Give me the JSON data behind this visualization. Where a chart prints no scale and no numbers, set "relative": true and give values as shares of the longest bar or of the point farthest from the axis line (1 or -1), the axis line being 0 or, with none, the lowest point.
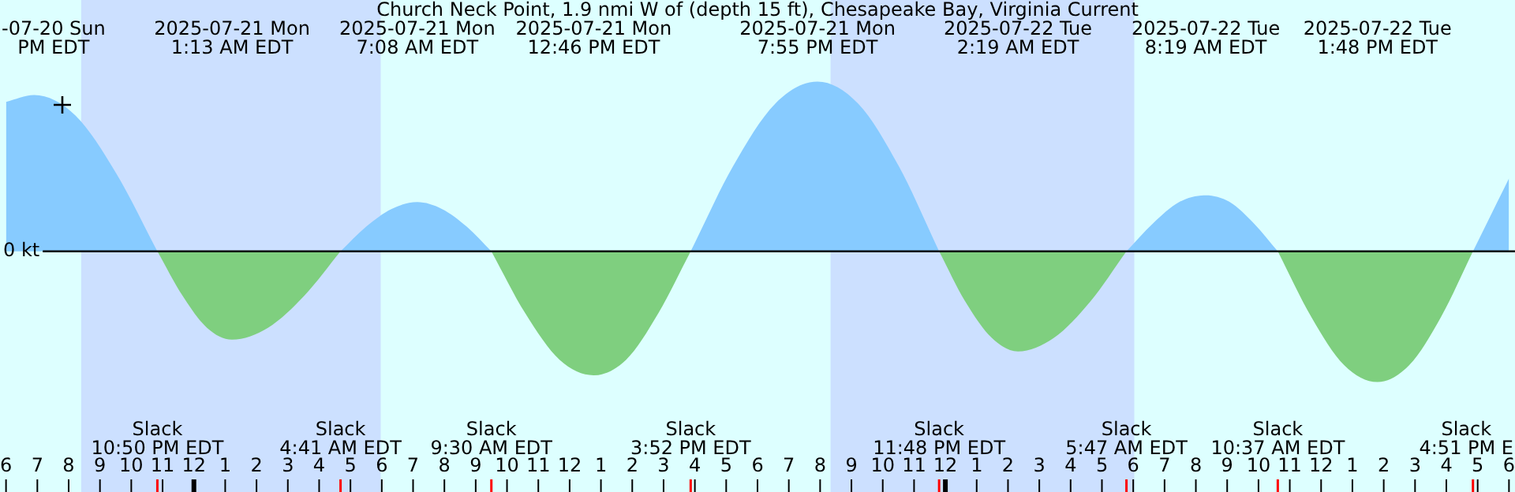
{
  "chart_data": {
    "type": "area",
    "title": "Church Neck Point, 1.9 nmi W of (depth 15 ft), Chesapeake Bay, Virginia Current",
    "relative": true,
    "marker": "none",
    "x": [
      "2025-07-20T18:00",
      "2025-07-20T18:54",
      "2025-07-20T20:13",
      "2025-07-20T21:31",
      "2025-07-20T22:50",
      "2025-07-20T23:38",
      "2025-07-21T00:25",
      "2025-07-21T01:13",
      "2025-07-21T02:22",
      "2025-07-21T03:32",
      "2025-07-21T04:41",
      "2025-07-21T05:30",
      "2025-07-21T06:19",
      "2025-07-21T07:08",
      "2025-07-21T07:55",
      "2025-07-21T08:43",
      "2025-07-21T09:30",
      "2025-07-21T10:35",
      "2025-07-21T11:41",
      "2025-07-21T12:46",
      "2025-07-21T13:48",
      "2025-07-21T14:50",
      "2025-07-21T15:52",
      "2025-07-21T17:13",
      "2025-07-21T18:34",
      "2025-07-21T19:55",
      "2025-07-21T21:13",
      "2025-07-21T22:31",
      "2025-07-21T23:48",
      "2025-07-22T00:38",
      "2025-07-22T01:29",
      "2025-07-22T02:19",
      "2025-07-22T03:28",
      "2025-07-22T04:38",
      "2025-07-22T05:47",
      "2025-07-22T06:38",
      "2025-07-22T07:28",
      "2025-07-22T08:19",
      "2025-07-22T09:05",
      "2025-07-22T09:51",
      "2025-07-22T10:37",
      "2025-07-22T11:41",
      "2025-07-22T12:44",
      "2025-07-22T13:48",
      "2025-07-22T14:49",
      "2025-07-22T15:50",
      "2025-07-22T16:51",
      "2025-07-22T18:00"
    ],
    "series": [
      {
        "color": "#87cbff",
        "values": [
          0.88,
          0.92,
          0.8,
          0.46,
          0,
          null,
          null,
          null,
          null,
          null,
          0,
          0.145,
          0.25,
          0.29,
          0.25,
          0.145,
          0,
          null,
          null,
          null,
          null,
          null,
          0,
          0.5,
          0.87,
          1,
          0.87,
          0.5,
          0,
          null,
          null,
          null,
          null,
          null,
          0,
          0.165,
          0.29,
          0.33,
          0.29,
          0.165,
          0,
          null,
          null,
          null,
          null,
          null,
          0,
          0.43
        ]
      },
      {
        "color": "#7fcf7f",
        "values": [
          null,
          null,
          null,
          null,
          0,
          -0.26,
          -0.45,
          -0.52,
          -0.45,
          -0.26,
          0,
          null,
          null,
          null,
          null,
          null,
          0,
          -0.365,
          -0.64,
          -0.73,
          -0.64,
          -0.365,
          0,
          null,
          null,
          null,
          null,
          null,
          0,
          -0.295,
          -0.51,
          -0.59,
          -0.51,
          -0.295,
          0,
          null,
          null,
          null,
          null,
          null,
          0,
          -0.385,
          -0.67,
          -0.77,
          -0.67,
          -0.385,
          0,
          null
        ]
      }
    ],
    "xlim": [
      "2025-07-20T18:00",
      "2025-07-22T18:00"
    ],
    "xticks": [
      {
        "value": "2025-07-20T18:00",
        "label": "6"
      },
      {
        "value": "2025-07-20T19:00",
        "label": "7"
      },
      {
        "value": "2025-07-20T20:00",
        "label": "8"
      },
      {
        "value": "2025-07-20T21:00",
        "label": "9"
      },
      {
        "value": "2025-07-20T22:00",
        "label": "10"
      },
      {
        "value": "2025-07-20T23:00",
        "label": "11"
      },
      {
        "value": "2025-07-21T00:00",
        "label": "12"
      },
      {
        "value": "2025-07-21T01:00",
        "label": "1"
      },
      {
        "value": "2025-07-21T02:00",
        "label": "2"
      },
      {
        "value": "2025-07-21T03:00",
        "label": "3"
      },
      {
        "value": "2025-07-21T04:00",
        "label": "4"
      },
      {
        "value": "2025-07-21T05:00",
        "label": "5"
      },
      {
        "value": "2025-07-21T06:00",
        "label": "6"
      },
      {
        "value": "2025-07-21T07:00",
        "label": "7"
      },
      {
        "value": "2025-07-21T08:00",
        "label": "8"
      },
      {
        "value": "2025-07-21T09:00",
        "label": "9"
      },
      {
        "value": "2025-07-21T10:00",
        "label": "10"
      },
      {
        "value": "2025-07-21T11:00",
        "label": "11"
      },
      {
        "value": "2025-07-21T12:00",
        "label": "12"
      },
      {
        "value": "2025-07-21T13:00",
        "label": "1"
      },
      {
        "value": "2025-07-21T14:00",
        "label": "2"
      },
      {
        "value": "2025-07-21T15:00",
        "label": "3"
      },
      {
        "value": "2025-07-21T16:00",
        "label": "4"
      },
      {
        "value": "2025-07-21T17:00",
        "label": "5"
      },
      {
        "value": "2025-07-21T18:00",
        "label": "6"
      },
      {
        "value": "2025-07-21T19:00",
        "label": "7"
      },
      {
        "value": "2025-07-21T20:00",
        "label": "8"
      },
      {
        "value": "2025-07-21T21:00",
        "label": "9"
      },
      {
        "value": "2025-07-21T22:00",
        "label": "10"
      },
      {
        "value": "2025-07-21T23:00",
        "label": "11"
      },
      {
        "value": "2025-07-22T00:00",
        "label": "12"
      },
      {
        "value": "2025-07-22T01:00",
        "label": "1"
      },
      {
        "value": "2025-07-22T02:00",
        "label": "2"
      },
      {
        "value": "2025-07-22T03:00",
        "label": "3"
      },
      {
        "value": "2025-07-22T04:00",
        "label": "4"
      },
      {
        "value": "2025-07-22T05:00",
        "label": "5"
      },
      {
        "value": "2025-07-22T06:00",
        "label": "6"
      },
      {
        "value": "2025-07-22T07:00",
        "label": "7"
      },
      {
        "value": "2025-07-22T08:00",
        "label": "8"
      },
      {
        "value": "2025-07-22T09:00",
        "label": "9"
      },
      {
        "value": "2025-07-22T10:00",
        "label": "10"
      },
      {
        "value": "2025-07-22T11:00",
        "label": "11"
      },
      {
        "value": "2025-07-22T12:00",
        "label": "12"
      },
      {
        "value": "2025-07-22T13:00",
        "label": "1"
      },
      {
        "value": "2025-07-22T14:00",
        "label": "2"
      },
      {
        "value": "2025-07-22T15:00",
        "label": "3"
      },
      {
        "value": "2025-07-22T16:00",
        "label": "4"
      },
      {
        "value": "2025-07-22T17:00",
        "label": "5"
      },
      {
        "value": "2025-07-22T18:00",
        "label": "6"
      }
    ],
    "ref_lines": [
      {
        "axis": "y",
        "value": 0,
        "label": "0 kt",
        "color": "#000000"
      }
    ],
    "bands": [
      {
        "axis": "x",
        "from": "2025-07-20T20:24",
        "to": "2025-07-21T05:58",
        "color": "#cce0ff"
      },
      {
        "axis": "x",
        "from": "2025-07-21T20:20",
        "to": "2025-07-22T06:02",
        "color": "#cce0ff"
      }
    ],
    "annotations": [
      "-07-20 Sun\nPM EDT",
      "2025-07-21 Mon\n1:13 AM EDT",
      "2025-07-21 Mon\n7:08 AM EDT",
      "2025-07-21 Mon\n12:46 PM EDT",
      "2025-07-21 Mon\n7:55 PM EDT",
      "2025-07-22 Tue\n2:19 AM EDT",
      "2025-07-22 Tue\n8:19 AM EDT",
      "2025-07-22 Tue\n1:48 PM EDT",
      {
        "text": "Slack\n10:50 PM EDT",
        "x": "2025-07-20T22:50"
      },
      {
        "text": "Slack\n4:41 AM EDT",
        "x": "2025-07-21T04:41"
      },
      {
        "text": "Slack\n9:30 AM EDT",
        "x": "2025-07-21T09:30"
      },
      {
        "text": "Slack\n3:52 PM EDT",
        "x": "2025-07-21T15:52"
      },
      {
        "text": "Slack\n11:48 PM EDT",
        "x": "2025-07-21T23:48"
      },
      {
        "text": "Slack\n5:47 AM EDT",
        "x": "2025-07-22T05:47"
      },
      {
        "text": "Slack\n10:37 AM EDT",
        "x": "2025-07-22T10:37"
      },
      {
        "text": "Slack\n4:51 PM E",
        "x": "2025-07-22T16:51"
      }
    ]
  }
}
